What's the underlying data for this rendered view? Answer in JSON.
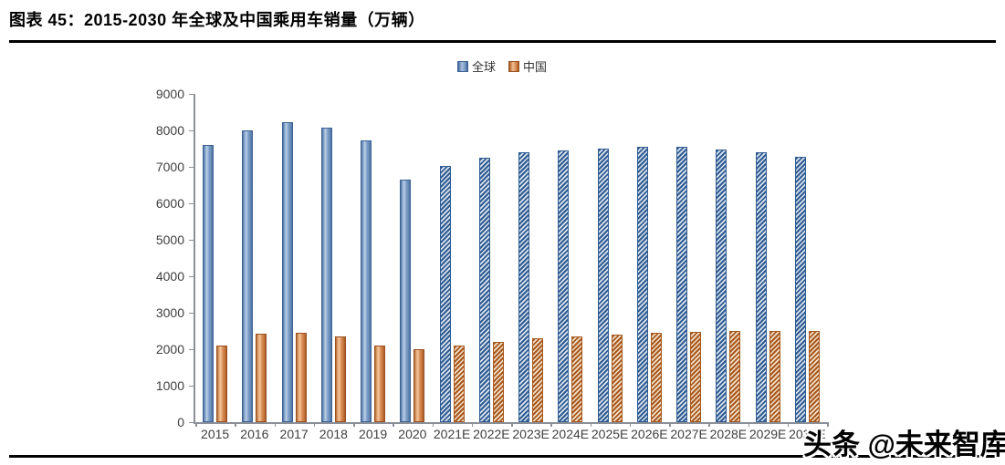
{
  "figure": {
    "title": "图表 45：2015-2030 年全球及中国乘用车销量（万辆）",
    "watermark": "头条 @未来智库"
  },
  "chart_data": {
    "type": "bar",
    "title": "2015-2030 年全球及中国乘用车销量（万辆）",
    "unit": "万辆",
    "categories": [
      "2015",
      "2016",
      "2017",
      "2018",
      "2019",
      "2020",
      "2021E",
      "2022E",
      "2023E",
      "2024E",
      "2025E",
      "2026E",
      "2027E",
      "2028E",
      "2029E",
      "2030E"
    ],
    "series": [
      {
        "name": "全球",
        "values": [
          7600,
          8000,
          8220,
          8080,
          7730,
          6650,
          7030,
          7260,
          7400,
          7460,
          7500,
          7550,
          7540,
          7480,
          7400,
          7270
        ],
        "color_main": "#7E9FC8",
        "color_dark": "#3C6295"
      },
      {
        "name": "中国",
        "values": [
          2100,
          2430,
          2460,
          2340,
          2100,
          2000,
          2100,
          2210,
          2290,
          2340,
          2390,
          2440,
          2480,
          2500,
          2510,
          2490
        ],
        "color_main": "#D98B55",
        "color_dark": "#9A5020"
      }
    ],
    "hatched_from_index": 6,
    "ylim": [
      0,
      9000
    ],
    "ytick_step": 1000,
    "grid": false,
    "legend_position": "top-center"
  }
}
